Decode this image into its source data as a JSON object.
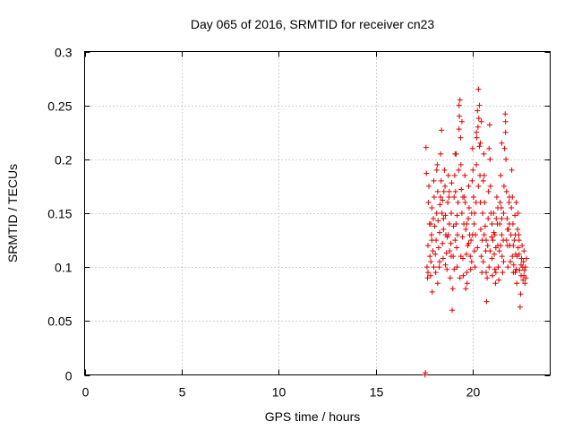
{
  "chart_data": {
    "type": "scatter",
    "title": "Day 065 of 2016, SRMTID for receiver cn23",
    "xlabel": "GPS time / hours",
    "ylabel": "SRMTID / TECUs",
    "xlim": [
      0,
      24
    ],
    "ylim": [
      0,
      0.3
    ],
    "x_ticks": [
      0,
      5,
      10,
      15,
      20
    ],
    "y_ticks": [
      0,
      0.05,
      0.1,
      0.15,
      0.2,
      0.25,
      0.3
    ],
    "x_tick_labels": [
      "0",
      "5",
      "10",
      "15",
      "20"
    ],
    "y_tick_labels": [
      "0",
      "0.05",
      "0.1",
      "0.15",
      "0.2",
      "0.25",
      "0.3"
    ],
    "grid": true,
    "marker": "plus",
    "color": "#e00000",
    "series": [
      {
        "points": [
          [
            17.55,
            0.0
          ],
          [
            17.57,
            0.002
          ],
          [
            17.6,
            0.211
          ],
          [
            17.62,
            0.187
          ],
          [
            17.65,
            0.1
          ],
          [
            17.68,
            0.09
          ],
          [
            17.7,
            0.12
          ],
          [
            17.72,
            0.16
          ],
          [
            17.75,
            0.175
          ],
          [
            17.78,
            0.14
          ],
          [
            17.8,
            0.11
          ],
          [
            17.83,
            0.092
          ],
          [
            17.85,
            0.105
          ],
          [
            17.88,
            0.13
          ],
          [
            17.9,
            0.155
          ],
          [
            17.92,
            0.077
          ],
          [
            17.95,
            0.115
          ],
          [
            17.98,
            0.145
          ],
          [
            18.0,
            0.18
          ],
          [
            18.02,
            0.165
          ],
          [
            18.05,
            0.138
          ],
          [
            18.08,
            0.112
          ],
          [
            18.1,
            0.095
          ],
          [
            18.12,
            0.125
          ],
          [
            18.15,
            0.15
          ],
          [
            18.18,
            0.195
          ],
          [
            18.2,
            0.17
          ],
          [
            18.22,
            0.143
          ],
          [
            18.25,
            0.118
          ],
          [
            18.28,
            0.1
          ],
          [
            18.3,
            0.132
          ],
          [
            18.32,
            0.158
          ],
          [
            18.35,
            0.205
          ],
          [
            18.38,
            0.18
          ],
          [
            18.4,
            0.227
          ],
          [
            18.42,
            0.15
          ],
          [
            18.45,
            0.122
          ],
          [
            18.48,
            0.108
          ],
          [
            18.5,
            0.135
          ],
          [
            18.52,
            0.17
          ],
          [
            18.55,
            0.19
          ],
          [
            18.58,
            0.175
          ],
          [
            18.6,
            0.148
          ],
          [
            18.62,
            0.13
          ],
          [
            18.65,
            0.113
          ],
          [
            18.68,
            0.098
          ],
          [
            18.7,
            0.128
          ],
          [
            18.72,
            0.16
          ],
          [
            18.75,
            0.185
          ],
          [
            18.78,
            0.165
          ],
          [
            18.8,
            0.14
          ],
          [
            18.82,
            0.115
          ],
          [
            18.85,
            0.09
          ],
          [
            18.88,
            0.122
          ],
          [
            18.9,
            0.15
          ],
          [
            18.92,
            0.178
          ],
          [
            18.95,
            0.06
          ],
          [
            18.98,
            0.08
          ],
          [
            19.0,
            0.11
          ],
          [
            19.02,
            0.138
          ],
          [
            19.05,
            0.165
          ],
          [
            19.08,
            0.185
          ],
          [
            19.1,
            0.205
          ],
          [
            19.12,
            0.17
          ],
          [
            19.15,
            0.14
          ],
          [
            19.18,
            0.118
          ],
          [
            19.2,
            0.1
          ],
          [
            19.22,
            0.13
          ],
          [
            19.25,
            0.16
          ],
          [
            19.28,
            0.19
          ],
          [
            19.3,
            0.228
          ],
          [
            19.32,
            0.24
          ],
          [
            19.35,
            0.255
          ],
          [
            19.38,
            0.22
          ],
          [
            19.4,
            0.195
          ],
          [
            19.42,
            0.172
          ],
          [
            19.45,
            0.15
          ],
          [
            19.48,
            0.128
          ],
          [
            19.5,
            0.108
          ],
          [
            19.52,
            0.092
          ],
          [
            19.55,
            0.14
          ],
          [
            19.58,
            0.165
          ],
          [
            19.6,
            0.185
          ],
          [
            19.62,
            0.16
          ],
          [
            19.65,
            0.135
          ],
          [
            19.68,
            0.112
          ],
          [
            19.7,
            0.095
          ],
          [
            19.72,
            0.085
          ],
          [
            19.75,
            0.12
          ],
          [
            19.78,
            0.145
          ],
          [
            19.8,
            0.175
          ],
          [
            19.82,
            0.155
          ],
          [
            19.85,
            0.13
          ],
          [
            19.88,
            0.11
          ],
          [
            19.9,
            0.098
          ],
          [
            19.92,
            0.125
          ],
          [
            19.95,
            0.15
          ],
          [
            19.98,
            0.18
          ],
          [
            20.0,
            0.21
          ],
          [
            20.02,
            0.19
          ],
          [
            20.05,
            0.165
          ],
          [
            20.08,
            0.14
          ],
          [
            20.1,
            0.115
          ],
          [
            20.12,
            0.1
          ],
          [
            20.15,
            0.13
          ],
          [
            20.18,
            0.16
          ],
          [
            20.2,
            0.195
          ],
          [
            20.22,
            0.22
          ],
          [
            20.25,
            0.245
          ],
          [
            20.28,
            0.23
          ],
          [
            20.3,
            0.265
          ],
          [
            20.32,
            0.238
          ],
          [
            20.35,
            0.212
          ],
          [
            20.38,
            0.185
          ],
          [
            20.4,
            0.16
          ],
          [
            20.42,
            0.135
          ],
          [
            20.45,
            0.11
          ],
          [
            20.48,
            0.095
          ],
          [
            20.5,
            0.125
          ],
          [
            20.52,
            0.15
          ],
          [
            20.55,
            0.18
          ],
          [
            20.58,
            0.205
          ],
          [
            20.6,
            0.185
          ],
          [
            20.62,
            0.16
          ],
          [
            20.65,
            0.138
          ],
          [
            20.68,
            0.115
          ],
          [
            20.7,
            0.095
          ],
          [
            20.72,
            0.068
          ],
          [
            20.75,
            0.09
          ],
          [
            20.78,
            0.12
          ],
          [
            20.8,
            0.145
          ],
          [
            20.82,
            0.17
          ],
          [
            20.85,
            0.21
          ],
          [
            20.88,
            0.232
          ],
          [
            20.9,
            0.2
          ],
          [
            20.92,
            0.175
          ],
          [
            20.95,
            0.15
          ],
          [
            20.98,
            0.128
          ],
          [
            21.0,
            0.108
          ],
          [
            21.02,
            0.092
          ],
          [
            21.05,
            0.125
          ],
          [
            21.08,
            0.15
          ],
          [
            21.1,
            0.132
          ],
          [
            21.12,
            0.112
          ],
          [
            21.15,
            0.098
          ],
          [
            21.18,
            0.085
          ],
          [
            21.2,
            0.118
          ],
          [
            21.22,
            0.145
          ],
          [
            21.25,
            0.165
          ],
          [
            21.28,
            0.14
          ],
          [
            21.3,
            0.12
          ],
          [
            21.32,
            0.1
          ],
          [
            21.35,
            0.088
          ],
          [
            21.38,
            0.115
          ],
          [
            21.4,
            0.14
          ],
          [
            21.42,
            0.16
          ],
          [
            21.45,
            0.185
          ],
          [
            21.48,
            0.155
          ],
          [
            21.5,
            0.13
          ],
          [
            21.52,
            0.11
          ],
          [
            21.55,
            0.095
          ],
          [
            21.58,
            0.125
          ],
          [
            21.6,
            0.15
          ],
          [
            21.62,
            0.175
          ],
          [
            21.65,
            0.21
          ],
          [
            21.68,
            0.242
          ],
          [
            21.7,
            0.235
          ],
          [
            21.72,
            0.2
          ],
          [
            21.75,
            0.17
          ],
          [
            21.78,
            0.145
          ],
          [
            21.8,
            0.12
          ],
          [
            21.82,
            0.1
          ],
          [
            21.85,
            0.135
          ],
          [
            21.88,
            0.16
          ],
          [
            21.9,
            0.14
          ],
          [
            21.92,
            0.12
          ],
          [
            21.95,
            0.105
          ],
          [
            21.98,
            0.13
          ],
          [
            22.0,
            0.155
          ],
          [
            22.02,
            0.19
          ],
          [
            22.05,
            0.165
          ],
          [
            22.08,
            0.14
          ],
          [
            22.1,
            0.12
          ],
          [
            22.12,
            0.102
          ],
          [
            22.15,
            0.125
          ],
          [
            22.18,
            0.148
          ],
          [
            22.2,
            0.13
          ],
          [
            22.22,
            0.112
          ],
          [
            22.25,
            0.098
          ],
          [
            22.28,
            0.085
          ],
          [
            22.3,
            0.11
          ],
          [
            22.32,
            0.135
          ],
          [
            22.35,
            0.15
          ],
          [
            22.38,
            0.13
          ],
          [
            22.4,
            0.112
          ],
          [
            22.42,
            0.097
          ],
          [
            22.45,
            0.063
          ],
          [
            22.48,
            0.075
          ],
          [
            22.5,
            0.092
          ],
          [
            22.52,
            0.108
          ],
          [
            22.55,
            0.12
          ],
          [
            22.58,
            0.1
          ],
          [
            22.6,
            0.088
          ],
          [
            22.62,
            0.105
          ],
          [
            22.65,
            0.115
          ],
          [
            22.68,
            0.097
          ],
          [
            22.7,
            0.085
          ],
          [
            22.72,
            0.1
          ],
          [
            22.75,
            0.09
          ],
          [
            22.78,
            0.108
          ],
          [
            17.7,
            0.095
          ],
          [
            17.85,
            0.14
          ],
          [
            18.0,
            0.1
          ],
          [
            18.15,
            0.19
          ],
          [
            18.3,
            0.105
          ],
          [
            18.45,
            0.162
          ],
          [
            18.6,
            0.102
          ],
          [
            18.75,
            0.13
          ],
          [
            18.9,
            0.11
          ],
          [
            19.05,
            0.098
          ],
          [
            19.2,
            0.148
          ],
          [
            19.35,
            0.09
          ],
          [
            19.5,
            0.165
          ],
          [
            19.65,
            0.08
          ],
          [
            19.8,
            0.122
          ],
          [
            19.95,
            0.105
          ],
          [
            20.1,
            0.15
          ],
          [
            20.25,
            0.118
          ],
          [
            20.4,
            0.215
          ],
          [
            20.55,
            0.105
          ],
          [
            20.7,
            0.125
          ],
          [
            20.85,
            0.1
          ],
          [
            21.0,
            0.14
          ],
          [
            21.15,
            0.13
          ],
          [
            21.3,
            0.155
          ],
          [
            21.45,
            0.12
          ],
          [
            21.6,
            0.105
          ],
          [
            21.75,
            0.125
          ],
          [
            21.9,
            0.165
          ],
          [
            22.05,
            0.11
          ],
          [
            22.2,
            0.095
          ],
          [
            22.35,
            0.118
          ],
          [
            22.5,
            0.102
          ],
          [
            22.65,
            0.092
          ],
          [
            17.9,
            0.125
          ],
          [
            18.2,
            0.085
          ],
          [
            18.5,
            0.145
          ],
          [
            18.8,
            0.17
          ],
          [
            19.1,
            0.125
          ],
          [
            19.4,
            0.11
          ],
          [
            19.7,
            0.14
          ],
          [
            20.0,
            0.13
          ],
          [
            20.3,
            0.175
          ],
          [
            20.6,
            0.13
          ],
          [
            20.9,
            0.115
          ],
          [
            21.2,
            0.095
          ],
          [
            21.5,
            0.145
          ],
          [
            21.8,
            0.135
          ],
          [
            22.1,
            0.095
          ],
          [
            22.4,
            0.125
          ],
          [
            20.2,
            0.225
          ],
          [
            20.35,
            0.25
          ],
          [
            19.3,
            0.25
          ],
          [
            19.45,
            0.235
          ],
          [
            21.7,
            0.225
          ],
          [
            21.5,
            0.215
          ],
          [
            20.45,
            0.235
          ],
          [
            19.15,
            0.205
          ],
          [
            18.35,
            0.165
          ],
          [
            22.25,
            0.16
          ]
        ]
      }
    ]
  }
}
